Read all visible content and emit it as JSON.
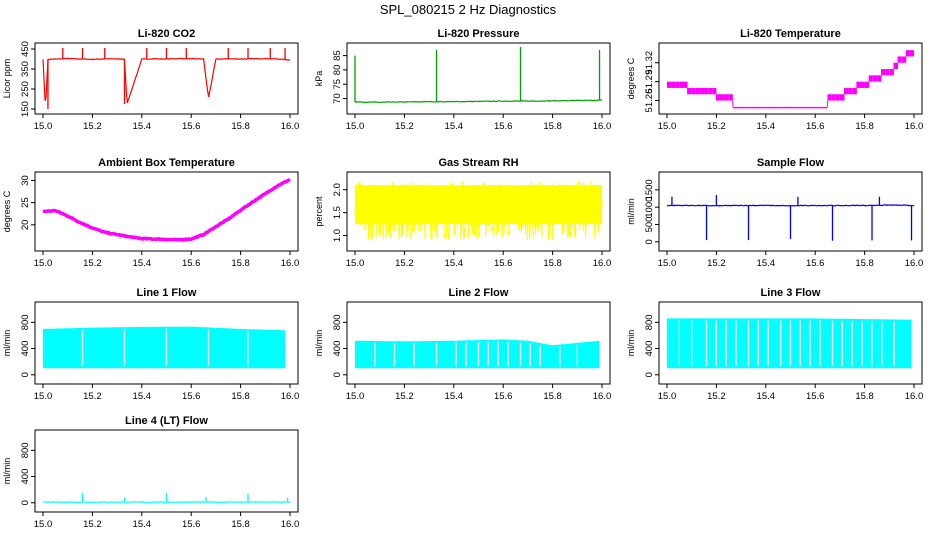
{
  "figure": {
    "title": "SPL_080215  2 Hz Diagnostics"
  },
  "chart_data": [
    {
      "id": "co2",
      "type": "line",
      "title": "Li-820 CO2",
      "ylabel": "Licor ppm",
      "xlabel": "",
      "xlim": [
        15.0,
        16.0
      ],
      "ylim": [
        145,
        460
      ],
      "xticks": [
        15.0,
        15.2,
        15.4,
        15.6,
        15.8,
        16.0
      ],
      "xticklabels": [
        "15.0",
        "15.2",
        "15.4",
        "15.6",
        "15.8",
        "16.0"
      ],
      "yticks": [
        150,
        250,
        350,
        450
      ],
      "yticklabels": [
        "150",
        "250",
        "350",
        "450"
      ],
      "color": "#ff0000",
      "style": "trace",
      "series": [
        {
          "name": "CO2",
          "x": [
            15.0,
            15.01,
            15.02,
            15.06,
            15.1,
            15.16,
            15.2,
            15.25,
            15.3,
            15.33,
            15.34,
            15.4,
            15.45,
            15.5,
            15.55,
            15.6,
            15.65,
            15.67,
            15.7,
            15.75,
            15.8,
            15.85,
            15.9,
            15.95,
            16.0
          ],
          "y": [
            400,
            150,
            398,
            400,
            402,
            400,
            398,
            401,
            400,
            400,
            175,
            399,
            401,
            400,
            402,
            401,
            400,
            205,
            399,
            401,
            400,
            401,
            402,
            400,
            395
          ]
        }
      ],
      "spikes": [
        {
          "x": 15.02,
          "y": 150
        },
        {
          "x": 15.08,
          "y": 455
        },
        {
          "x": 15.16,
          "y": 455
        },
        {
          "x": 15.25,
          "y": 455
        },
        {
          "x": 15.33,
          "y": 175
        },
        {
          "x": 15.42,
          "y": 455
        },
        {
          "x": 15.5,
          "y": 455
        },
        {
          "x": 15.58,
          "y": 455
        },
        {
          "x": 15.67,
          "y": 205
        },
        {
          "x": 15.75,
          "y": 455
        },
        {
          "x": 15.83,
          "y": 455
        },
        {
          "x": 15.92,
          "y": 455
        },
        {
          "x": 15.98,
          "y": 455
        }
      ]
    },
    {
      "id": "pressure",
      "type": "line",
      "title": "Li-820 Pressure",
      "ylabel": "kPa",
      "xlabel": "",
      "xlim": [
        15.0,
        16.0
      ],
      "ylim": [
        66,
        88
      ],
      "xticks": [
        15.0,
        15.2,
        15.4,
        15.6,
        15.8,
        16.0
      ],
      "xticklabels": [
        "15.0",
        "15.2",
        "15.4",
        "15.6",
        "15.8",
        "16.0"
      ],
      "yticks": [
        70,
        75,
        80,
        85
      ],
      "yticklabels": [
        "70",
        "75",
        "80",
        "85"
      ],
      "color": "#00a000",
      "style": "trace",
      "series": [
        {
          "name": "Pressure",
          "x": [
            15.0,
            15.1,
            15.2,
            15.3,
            15.4,
            15.5,
            15.6,
            15.7,
            15.8,
            15.9,
            16.0
          ],
          "y": [
            68.8,
            68.7,
            68.8,
            68.9,
            68.9,
            69.0,
            69.1,
            69.1,
            69.2,
            69.3,
            69.4
          ]
        }
      ],
      "spikes": [
        {
          "x": 15.0,
          "y": 85
        },
        {
          "x": 15.33,
          "y": 87
        },
        {
          "x": 15.67,
          "y": 88
        },
        {
          "x": 15.99,
          "y": 87
        }
      ]
    },
    {
      "id": "licor-temp",
      "type": "line",
      "title": "Li-820 Temperature",
      "ylabel": "degrees C",
      "xlabel": "",
      "xlim": [
        15.0,
        16.0
      ],
      "ylim": [
        51.245,
        51.345
      ],
      "xticks": [
        15.0,
        15.2,
        15.4,
        15.6,
        15.8,
        16.0
      ],
      "xticklabels": [
        "15.0",
        "15.2",
        "15.4",
        "15.6",
        "15.8",
        "16.0"
      ],
      "yticks": [
        51.26,
        51.29,
        51.32
      ],
      "yticklabels": [
        "51.26",
        "51.29",
        "51.32"
      ],
      "color": "#ff00ff",
      "style": "quantized",
      "series": [
        {
          "name": "Temperature",
          "x": [
            15.0,
            15.05,
            15.1,
            15.15,
            15.2,
            15.25,
            15.3,
            15.4,
            15.5,
            15.6,
            15.7,
            15.75,
            15.8,
            15.85,
            15.9,
            15.95,
            16.0
          ],
          "y": [
            51.28,
            51.285,
            51.27,
            51.265,
            51.265,
            51.26,
            51.25,
            51.25,
            51.25,
            51.25,
            51.26,
            51.27,
            51.28,
            51.29,
            51.3,
            51.32,
            51.33
          ]
        }
      ]
    },
    {
      "id": "ambient-temp",
      "type": "line",
      "title": "Ambient Box Temperature",
      "ylabel": "degrees C",
      "xlabel": "",
      "xlim": [
        15.0,
        16.0
      ],
      "ylim": [
        15,
        31
      ],
      "xticks": [
        15.0,
        15.2,
        15.4,
        15.6,
        15.8,
        16.0
      ],
      "xticklabels": [
        "15.0",
        "15.2",
        "15.4",
        "15.6",
        "15.8",
        "16.0"
      ],
      "yticks": [
        20,
        25,
        30
      ],
      "yticklabels": [
        "20",
        "25",
        "30"
      ],
      "color": "#ff00ff",
      "style": "thick",
      "series": [
        {
          "name": "Ambient",
          "x": [
            15.0,
            15.05,
            15.1,
            15.15,
            15.2,
            15.25,
            15.3,
            15.35,
            15.4,
            15.45,
            15.5,
            15.55,
            15.6,
            15.65,
            15.7,
            15.75,
            15.8,
            15.85,
            15.9,
            15.95,
            16.0
          ],
          "y": [
            23.0,
            23.2,
            22.0,
            20.5,
            19.3,
            18.3,
            17.8,
            17.3,
            16.9,
            16.8,
            16.7,
            16.6,
            16.8,
            17.8,
            19.6,
            21.3,
            23.3,
            25.2,
            27.0,
            28.8,
            30.2
          ]
        }
      ]
    },
    {
      "id": "gas-rh",
      "type": "line",
      "title": "Gas Stream RH",
      "ylabel": "percent",
      "xlabel": "",
      "xlim": [
        15.0,
        16.0
      ],
      "ylim": [
        0.75,
        2.3
      ],
      "xticks": [
        15.0,
        15.2,
        15.4,
        15.6,
        15.8,
        16.0
      ],
      "xticklabels": [
        "15.0",
        "15.2",
        "15.4",
        "15.6",
        "15.8",
        "16.0"
      ],
      "yticks": [
        1.0,
        1.5,
        2.0
      ],
      "yticklabels": [
        "1.0",
        "1.5",
        "2.0"
      ],
      "color": "#ffff00",
      "style": "noise",
      "series": [
        {
          "name": "RH",
          "x": [
            15.0,
            16.0
          ],
          "y": [
            1.6,
            1.6
          ],
          "ymin": 0.9,
          "ymax": 2.2
        }
      ]
    },
    {
      "id": "sample-flow",
      "type": "line",
      "title": "Sample Flow",
      "ylabel": "ml/min",
      "xlabel": "",
      "xlim": [
        15.0,
        16.0
      ],
      "ylim": [
        -150,
        1900
      ],
      "xticks": [
        15.0,
        15.2,
        15.4,
        15.6,
        15.8,
        16.0
      ],
      "xticklabels": [
        "15.0",
        "15.2",
        "15.4",
        "15.6",
        "15.8",
        "16.0"
      ],
      "yticks": [
        0,
        500,
        1000,
        1500
      ],
      "yticklabels": [
        "0",
        "500",
        "1000",
        "1500"
      ],
      "color": "#0000ff",
      "style": "trace",
      "series": [
        {
          "name": "Sample",
          "x": [
            15.0,
            15.1,
            15.2,
            15.3,
            15.4,
            15.5,
            15.6,
            15.7,
            15.8,
            15.9,
            16.0
          ],
          "y": [
            1050,
            1050,
            1040,
            1050,
            1050,
            1040,
            1050,
            1045,
            1050,
            1060,
            1050
          ]
        }
      ],
      "spikes": [
        {
          "x": 15.02,
          "y": 1300
        },
        {
          "x": 15.16,
          "y": 50
        },
        {
          "x": 15.2,
          "y": 1350
        },
        {
          "x": 15.33,
          "y": 50
        },
        {
          "x": 15.5,
          "y": 80
        },
        {
          "x": 15.53,
          "y": 1300
        },
        {
          "x": 15.67,
          "y": 30
        },
        {
          "x": 15.83,
          "y": 40
        },
        {
          "x": 15.86,
          "y": 1300
        },
        {
          "x": 15.99,
          "y": 40
        }
      ]
    },
    {
      "id": "line1-flow",
      "type": "line",
      "title": "Line 1 Flow",
      "ylabel": "ml/min",
      "xlabel": "",
      "xlim": [
        15.0,
        16.0
      ],
      "ylim": [
        -80,
        1050
      ],
      "xticks": [
        15.0,
        15.2,
        15.4,
        15.6,
        15.8,
        16.0
      ],
      "xticklabels": [
        "15.0",
        "15.2",
        "15.4",
        "15.6",
        "15.8",
        "16.0"
      ],
      "yticks": [
        0,
        400,
        800
      ],
      "yticklabels": [
        "0",
        "400",
        "800"
      ],
      "color": "#00ffff",
      "style": "band",
      "series": [
        {
          "name": "Line 1",
          "x": [
            15.0,
            15.2,
            15.4,
            15.6,
            15.8,
            15.98
          ],
          "ymax": [
            700,
            720,
            730,
            735,
            700,
            680
          ],
          "ymin": 100
        }
      ],
      "gaps": [
        15.16,
        15.33,
        15.5,
        15.67,
        15.83
      ]
    },
    {
      "id": "line2-flow",
      "type": "line",
      "title": "Line 2 Flow",
      "ylabel": "ml/min",
      "xlabel": "",
      "xlim": [
        15.0,
        16.0
      ],
      "ylim": [
        -80,
        1050
      ],
      "xticks": [
        15.0,
        15.2,
        15.4,
        15.6,
        15.8,
        16.0
      ],
      "xticklabels": [
        "15.0",
        "15.2",
        "15.4",
        "15.6",
        "15.8",
        "16.0"
      ],
      "yticks": [
        0,
        400,
        800
      ],
      "yticklabels": [
        "0",
        "400",
        "800"
      ],
      "color": "#00ffff",
      "style": "band",
      "series": [
        {
          "name": "Line 2",
          "x": [
            15.0,
            15.2,
            15.4,
            15.6,
            15.7,
            15.8,
            15.99
          ],
          "ymax": [
            520,
            510,
            520,
            540,
            520,
            450,
            520
          ],
          "ymin": 100
        }
      ],
      "gaps": [
        15.08,
        15.16,
        15.24,
        15.33,
        15.41,
        15.45,
        15.5,
        15.54,
        15.58,
        15.62,
        15.67,
        15.71,
        15.75,
        15.83,
        15.9
      ]
    },
    {
      "id": "line3-flow",
      "type": "line",
      "title": "Line 3 Flow",
      "ylabel": "ml/min",
      "xlabel": "",
      "xlim": [
        15.0,
        16.0
      ],
      "ylim": [
        -80,
        1050
      ],
      "xticks": [
        15.0,
        15.2,
        15.4,
        15.6,
        15.8,
        16.0
      ],
      "xticklabels": [
        "15.0",
        "15.2",
        "15.4",
        "15.6",
        "15.8",
        "16.0"
      ],
      "yticks": [
        0,
        400,
        800
      ],
      "yticklabels": [
        "0",
        "400",
        "800"
      ],
      "color": "#00ffff",
      "style": "band",
      "series": [
        {
          "name": "Line 3",
          "x": [
            15.0,
            15.2,
            15.4,
            15.6,
            15.8,
            15.99
          ],
          "ymax": [
            860,
            860,
            860,
            860,
            850,
            840
          ],
          "ymin": 100
        }
      ],
      "gaps": [
        15.05,
        15.1,
        15.16,
        15.2,
        15.24,
        15.28,
        15.33,
        15.37,
        15.41,
        15.46,
        15.5,
        15.54,
        15.58,
        15.62,
        15.67,
        15.71,
        15.75,
        15.79,
        15.83,
        15.87,
        15.92
      ]
    },
    {
      "id": "line4-flow",
      "type": "line",
      "title": "Line 4 (LT) Flow",
      "ylabel": "ml/min",
      "xlabel": "",
      "xlim": [
        15.0,
        16.0
      ],
      "ylim": [
        -80,
        1050
      ],
      "xticks": [
        15.0,
        15.2,
        15.4,
        15.6,
        15.8,
        16.0
      ],
      "xticklabels": [
        "15.0",
        "15.2",
        "15.4",
        "15.6",
        "15.8",
        "16.0"
      ],
      "yticks": [
        0,
        400,
        800
      ],
      "yticklabels": [
        "0",
        "400",
        "800"
      ],
      "color": "#00ffff",
      "style": "trace",
      "series": [
        {
          "name": "Line 4",
          "x": [
            15.0,
            15.2,
            15.4,
            15.6,
            15.8,
            16.0
          ],
          "y": [
            10,
            10,
            10,
            10,
            10,
            10
          ]
        }
      ],
      "spikes": [
        {
          "x": 15.16,
          "y": 150
        },
        {
          "x": 15.33,
          "y": 80
        },
        {
          "x": 15.5,
          "y": 150
        },
        {
          "x": 15.66,
          "y": 90
        },
        {
          "x": 15.83,
          "y": 140
        },
        {
          "x": 15.99,
          "y": 80
        }
      ]
    }
  ]
}
